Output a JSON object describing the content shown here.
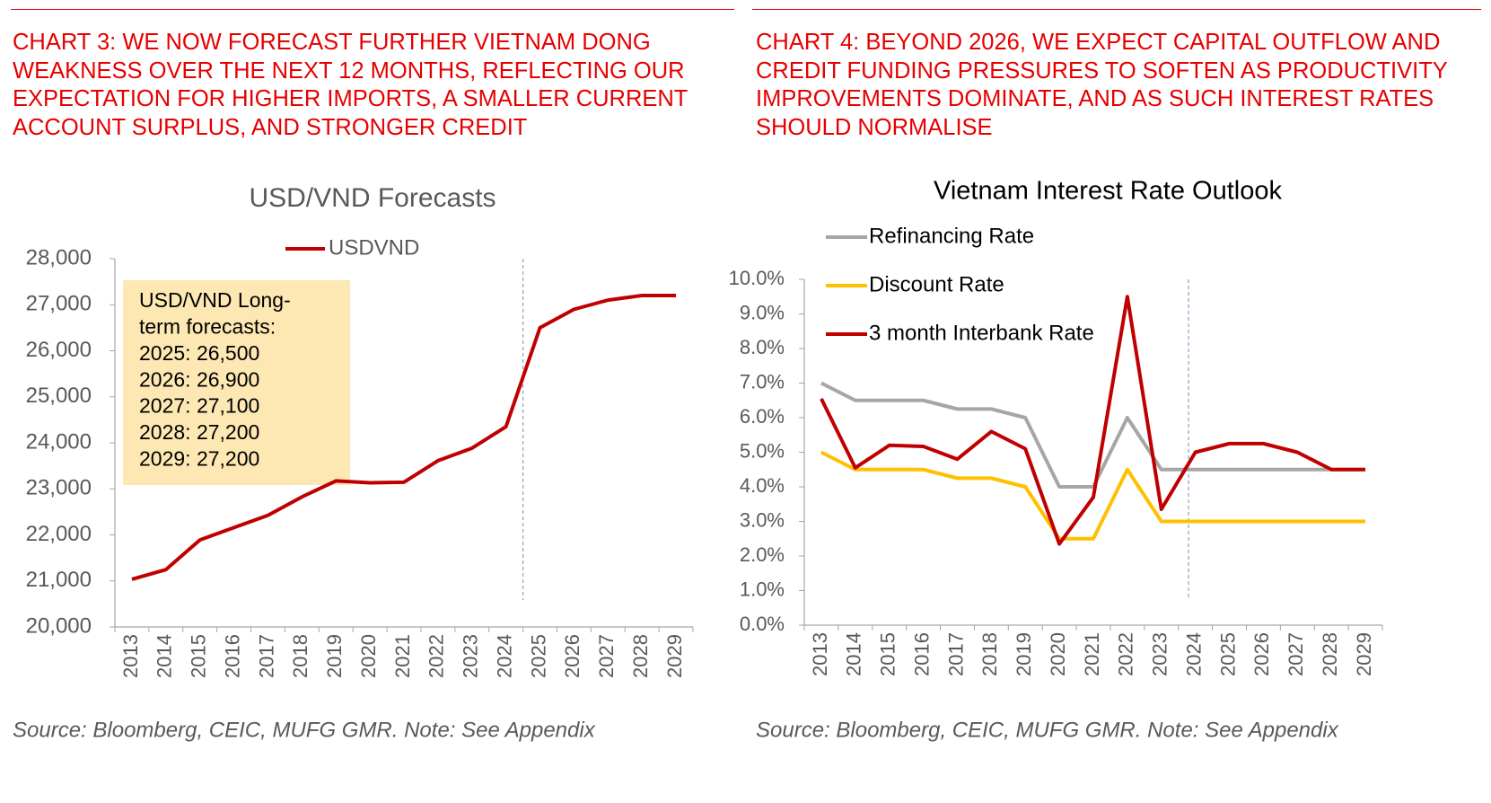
{
  "chart_data": [
    {
      "type": "line",
      "caption": "CHART 3: WE NOW FORECAST FURTHER VIETNAM DONG WEAKNESS OVER THE NEXT 12 MONTHS, REFLECTING OUR EXPECTATION FOR HIGHER IMPORTS, A SMALLER CURRENT ACCOUNT SURPLUS, AND STRONGER CREDIT",
      "title": "USD/VND Forecasts",
      "categories": [
        "2013",
        "2014",
        "2015",
        "2016",
        "2017",
        "2018",
        "2019",
        "2020",
        "2021",
        "2022",
        "2023",
        "2024",
        "2025",
        "2026",
        "2027",
        "2028",
        "2029"
      ],
      "series": [
        {
          "name": "USDVND",
          "color": "#c00000",
          "values": [
            21036,
            21246,
            21890,
            22159,
            22425,
            22825,
            23173,
            23131,
            23145,
            23612,
            23884,
            24350,
            26500,
            26900,
            27100,
            27200,
            27200
          ]
        }
      ],
      "ylim": [
        20000,
        28000
      ],
      "yticks": [
        {
          "value": 20000,
          "label": "20,000"
        },
        {
          "value": 21000,
          "label": "21,000"
        },
        {
          "value": 22000,
          "label": "22,000"
        },
        {
          "value": 23000,
          "label": "23,000"
        },
        {
          "value": 24000,
          "label": "24,000"
        },
        {
          "value": 25000,
          "label": "25,000"
        },
        {
          "value": 26000,
          "label": "26,000"
        },
        {
          "value": 27000,
          "label": "27,000"
        },
        {
          "value": 28000,
          "label": "28,000"
        }
      ],
      "annotation": [
        "USD/VND Long-",
        "term forecasts:",
        "2025: 26,500",
        "2026: 26,900",
        "2027: 27,100",
        "2028: 27,200",
        "2029: 27,200"
      ],
      "source": "Source: Bloomberg, CEIC, MUFG GMR. Note: See Appendix"
    },
    {
      "type": "line",
      "caption": "CHART 4: BEYOND 2026, WE EXPECT CAPITAL OUTFLOW AND CREDIT FUNDING PRESSURES TO SOFTEN AS PRODUCTIVITY IMPROVEMENTS DOMINATE, AND AS SUCH INTEREST RATES SHOULD NORMALISE",
      "title": "Vietnam Interest Rate Outlook",
      "categories": [
        "2013",
        "2014",
        "2015",
        "2016",
        "2017",
        "2018",
        "2019",
        "2020",
        "2021",
        "2022",
        "2023",
        "2024",
        "2025",
        "2026",
        "2027",
        "2028",
        "2029"
      ],
      "series": [
        {
          "name": "Refinancing Rate",
          "color": "#a6a6a6",
          "values": [
            7.0,
            6.5,
            6.5,
            6.5,
            6.25,
            6.25,
            6.0,
            4.0,
            4.0,
            6.0,
            4.5,
            4.5,
            4.5,
            4.5,
            4.5,
            4.5,
            4.5
          ]
        },
        {
          "name": "Discount Rate",
          "color": "#ffc000",
          "values": [
            5.0,
            4.5,
            4.5,
            4.5,
            4.25,
            4.25,
            4.0,
            2.5,
            2.5,
            4.5,
            3.0,
            3.0,
            3.0,
            3.0,
            3.0,
            3.0,
            3.0
          ]
        },
        {
          "name": "3 month Interbank Rate",
          "color": "#c00000",
          "values": [
            6.55,
            4.55,
            5.2,
            5.17,
            4.8,
            5.6,
            5.1,
            2.35,
            3.7,
            9.5,
            3.35,
            5.0,
            5.25,
            5.25,
            5.0,
            4.5,
            4.5
          ]
        }
      ],
      "ylim": [
        0,
        10
      ],
      "yticks": [
        {
          "value": 0,
          "label": "0.0%"
        },
        {
          "value": 1,
          "label": "1.0%"
        },
        {
          "value": 2,
          "label": "2.0%"
        },
        {
          "value": 3,
          "label": "3.0%"
        },
        {
          "value": 4,
          "label": "4.0%"
        },
        {
          "value": 5,
          "label": "5.0%"
        },
        {
          "value": 6,
          "label": "6.0%"
        },
        {
          "value": 7,
          "label": "7.0%"
        },
        {
          "value": 8,
          "label": "8.0%"
        },
        {
          "value": 9,
          "label": "9.0%"
        },
        {
          "value": 10,
          "label": "10.0%"
        }
      ],
      "source": "Source: Bloomberg, CEIC, MUFG GMR. Note: See Appendix"
    }
  ]
}
